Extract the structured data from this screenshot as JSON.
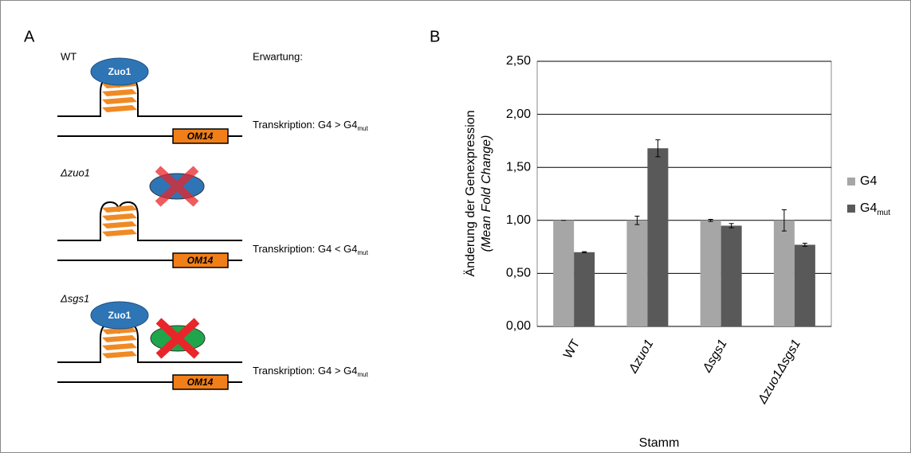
{
  "panel_a": {
    "label": "A",
    "expectation_header": "Erwartung:",
    "rows": [
      {
        "strain": "WT",
        "protein": "Zuo1",
        "gene": "OM14",
        "expectation": "Transkription: G4 > G4",
        "expectation_sub": "mut"
      },
      {
        "strain": "Δzuo1",
        "gene": "OM14",
        "expectation": "Transkription: G4 < G4",
        "expectation_sub": "mut"
      },
      {
        "strain": "Δsgs1",
        "protein": "Zuo1",
        "gene": "OM14",
        "expectation": "Transkription: G4 > G4",
        "expectation_sub": "mut"
      }
    ]
  },
  "panel_b": {
    "label": "B"
  },
  "chart_data": {
    "type": "bar",
    "y_label": "Änderung der Genexpression",
    "y_label_2": "(Mean Fold Change)",
    "x_label": "Stamm",
    "categories": [
      "WT",
      "Δzuo1",
      "Δsgs1",
      "Δzuo1Δsgs1"
    ],
    "series": [
      {
        "name": "G4",
        "color": "#a6a6a6",
        "values": [
          1.0,
          1.0,
          1.0,
          1.0
        ],
        "errors": [
          0,
          0.04,
          0.01,
          0.1
        ]
      },
      {
        "name": "G4",
        "name_sub": "mut",
        "color": "#595959",
        "values": [
          0.7,
          1.68,
          0.95,
          0.77
        ],
        "errors": [
          0.005,
          0.08,
          0.02,
          0.015
        ]
      }
    ],
    "ylim": [
      0,
      2.5
    ],
    "yticks": [
      {
        "value": 0,
        "label": "0,00"
      },
      {
        "value": 0.5,
        "label": "0,50"
      },
      {
        "value": 1,
        "label": "1,00"
      },
      {
        "value": 1.5,
        "label": "1,50"
      },
      {
        "value": 2,
        "label": "2,00"
      },
      {
        "value": 2.5,
        "label": "2,50"
      }
    ],
    "grid": true
  }
}
